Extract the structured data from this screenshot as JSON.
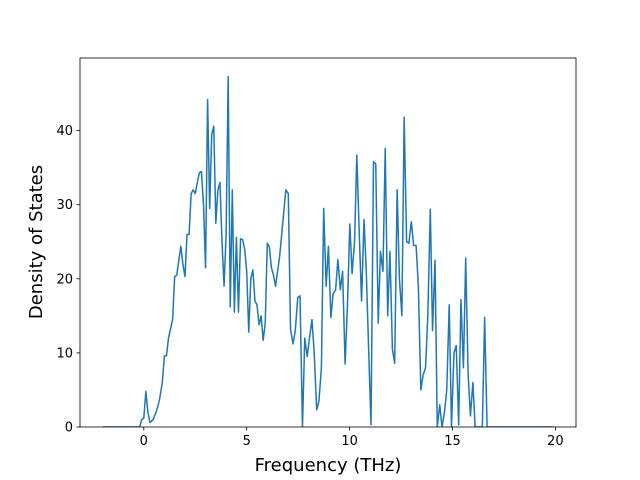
{
  "chart_data": {
    "type": "line",
    "xlabel": "Frequency (THz)",
    "ylabel": "Density of States",
    "xlim": [
      -3.1,
      21.0
    ],
    "ylim": [
      0,
      49.8
    ],
    "xticks": [
      0,
      5,
      10,
      15,
      20
    ],
    "yticks": [
      0,
      10,
      20,
      30,
      40
    ],
    "x": [
      -2,
      -0.3,
      -0.2,
      -0.1,
      0,
      0.1,
      0.2,
      0.3,
      0.45,
      0.6,
      0.75,
      0.9,
      1.0,
      1.1,
      1.2,
      1.4,
      1.5,
      1.6,
      1.8,
      1.9,
      2.0,
      2.1,
      2.2,
      2.3,
      2.4,
      2.5,
      2.6,
      2.7,
      2.8,
      2.9,
      3.0,
      3.1,
      3.2,
      3.3,
      3.4,
      3.5,
      3.6,
      3.7,
      3.8,
      3.9,
      4.0,
      4.1,
      4.2,
      4.3,
      4.4,
      4.5,
      4.6,
      4.7,
      4.8,
      4.9,
      5.0,
      5.1,
      5.2,
      5.3,
      5.4,
      5.5,
      5.6,
      5.7,
      5.8,
      5.9,
      6.0,
      6.1,
      6.2,
      6.3,
      6.4,
      6.6,
      6.9,
      7.02,
      7.13,
      7.25,
      7.36,
      7.48,
      7.59,
      7.71,
      7.82,
      7.94,
      8.05,
      8.17,
      8.28,
      8.4,
      8.51,
      8.63,
      8.74,
      8.86,
      8.97,
      9.09,
      9.2,
      9.32,
      9.43,
      9.55,
      9.66,
      9.78,
      9.89,
      10.01,
      10.12,
      10.24,
      10.35,
      10.47,
      10.58,
      10.7,
      10.81,
      10.93,
      11.04,
      11.16,
      11.27,
      11.39,
      11.5,
      11.62,
      11.73,
      11.85,
      11.96,
      12.08,
      12.19,
      12.31,
      12.42,
      12.54,
      12.65,
      12.77,
      12.88,
      13.0,
      13.11,
      13.23,
      13.34,
      13.46,
      13.57,
      13.69,
      13.8,
      13.92,
      14.03,
      14.15,
      14.26,
      14.38,
      14.49,
      14.61,
      14.72,
      14.84,
      14.95,
      15.07,
      15.18,
      15.3,
      15.41,
      15.53,
      15.64,
      15.76,
      15.87,
      15.99,
      16.1,
      16.22,
      16.33,
      16.45,
      16.56,
      16.68,
      19.9
    ],
    "series": [
      {
        "color": "#1f77b4",
        "values": [
          0,
          0,
          0,
          1,
          1.2,
          4.8,
          2,
          0.6,
          1,
          2,
          3.5,
          6,
          9.6,
          9.6,
          12,
          14.5,
          20.3,
          20.5,
          24.4,
          22,
          20.3,
          26,
          26,
          31.5,
          32,
          31.5,
          33,
          34.3,
          34.5,
          30,
          21.5,
          44.2,
          29.5,
          39.5,
          40.6,
          27.5,
          32,
          33,
          25,
          19,
          26,
          47.3,
          16.2,
          32,
          15.5,
          25.6,
          15.5,
          25.4,
          25.3,
          24,
          21,
          12.8,
          20,
          21.2,
          17,
          16.5,
          13.8,
          15,
          11.7,
          14,
          24.8,
          24.3,
          21.5,
          20.5,
          19,
          23,
          32,
          31.5,
          13.2,
          11.2,
          13,
          17.5,
          17.7,
          0,
          12,
          9.5,
          12,
          14.5,
          10,
          2.3,
          3.5,
          8,
          29.5,
          19,
          24.4,
          14.8,
          18,
          18.5,
          22.6,
          18.5,
          21,
          8.5,
          16,
          27.4,
          20.7,
          25,
          36.7,
          26,
          17,
          28,
          21,
          10,
          0.3,
          35.8,
          35.5,
          14,
          23.7,
          21,
          37.6,
          15,
          23.7,
          10.5,
          8.6,
          32,
          20,
          15,
          41.8,
          25,
          24.8,
          27.7,
          24.5,
          24.5,
          19,
          5,
          7,
          8,
          15,
          29.4,
          13,
          22.5,
          0,
          3,
          0,
          2,
          5,
          16.5,
          0,
          10,
          11,
          0.3,
          17.2,
          8,
          22.8,
          7,
          1.5,
          6,
          0,
          0,
          0,
          0,
          14.8,
          0,
          0
        ]
      }
    ]
  }
}
